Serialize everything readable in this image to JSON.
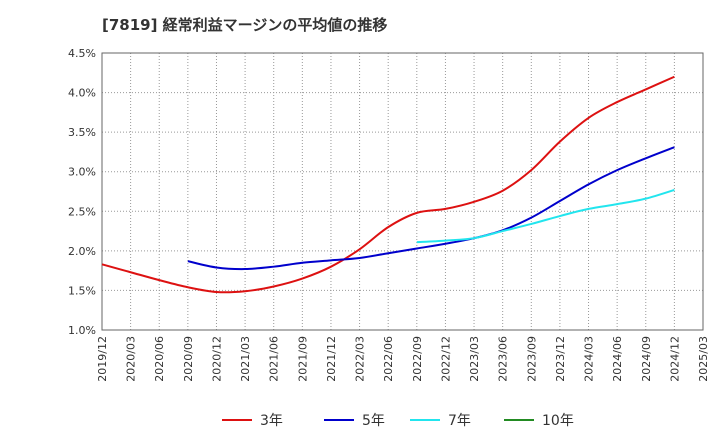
{
  "title": "[7819]  経常利益マージンの平均値の推移",
  "chart_data": {
    "type": "line",
    "title": "[7819]  経常利益マージンの平均値の推移",
    "xlabel": "",
    "ylabel": "",
    "x": [
      "2019/12",
      "2020/03",
      "2020/06",
      "2020/09",
      "2020/12",
      "2021/03",
      "2021/06",
      "2021/09",
      "2021/12",
      "2022/03",
      "2022/06",
      "2022/09",
      "2022/12",
      "2023/03",
      "2023/06",
      "2023/09",
      "2023/12",
      "2024/03",
      "2024/06",
      "2024/09",
      "2024/12",
      "2025/03"
    ],
    "yticks": [
      "1.0%",
      "1.5%",
      "2.0%",
      "2.5%",
      "3.0%",
      "3.5%",
      "4.0%",
      "4.5%"
    ],
    "ylim": [
      1.0,
      4.5
    ],
    "grid": true,
    "legend_position": "bottom",
    "series": [
      {
        "name": "3年",
        "color": "#dd1111",
        "values": [
          1.83,
          1.73,
          1.63,
          1.54,
          1.48,
          1.49,
          1.55,
          1.65,
          1.8,
          2.02,
          2.3,
          2.48,
          2.53,
          2.62,
          2.76,
          3.02,
          3.38,
          3.68,
          3.88,
          4.04,
          4.2,
          null
        ]
      },
      {
        "name": "5年",
        "color": "#0000cc",
        "values": [
          null,
          null,
          null,
          1.87,
          1.79,
          1.77,
          1.8,
          1.85,
          1.88,
          1.91,
          1.97,
          2.03,
          2.09,
          2.16,
          2.26,
          2.42,
          2.63,
          2.84,
          3.02,
          3.17,
          3.31,
          null
        ]
      },
      {
        "name": "7年",
        "color": "#22e5ee",
        "values": [
          null,
          null,
          null,
          null,
          null,
          null,
          null,
          null,
          null,
          null,
          null,
          2.11,
          2.13,
          2.16,
          2.25,
          2.34,
          2.44,
          2.53,
          2.59,
          2.66,
          2.77,
          null
        ]
      },
      {
        "name": "10年",
        "color": "#228b22",
        "values": [
          null,
          null,
          null,
          null,
          null,
          null,
          null,
          null,
          null,
          null,
          null,
          null,
          null,
          null,
          null,
          null,
          null,
          null,
          null,
          null,
          null,
          null
        ]
      }
    ]
  }
}
